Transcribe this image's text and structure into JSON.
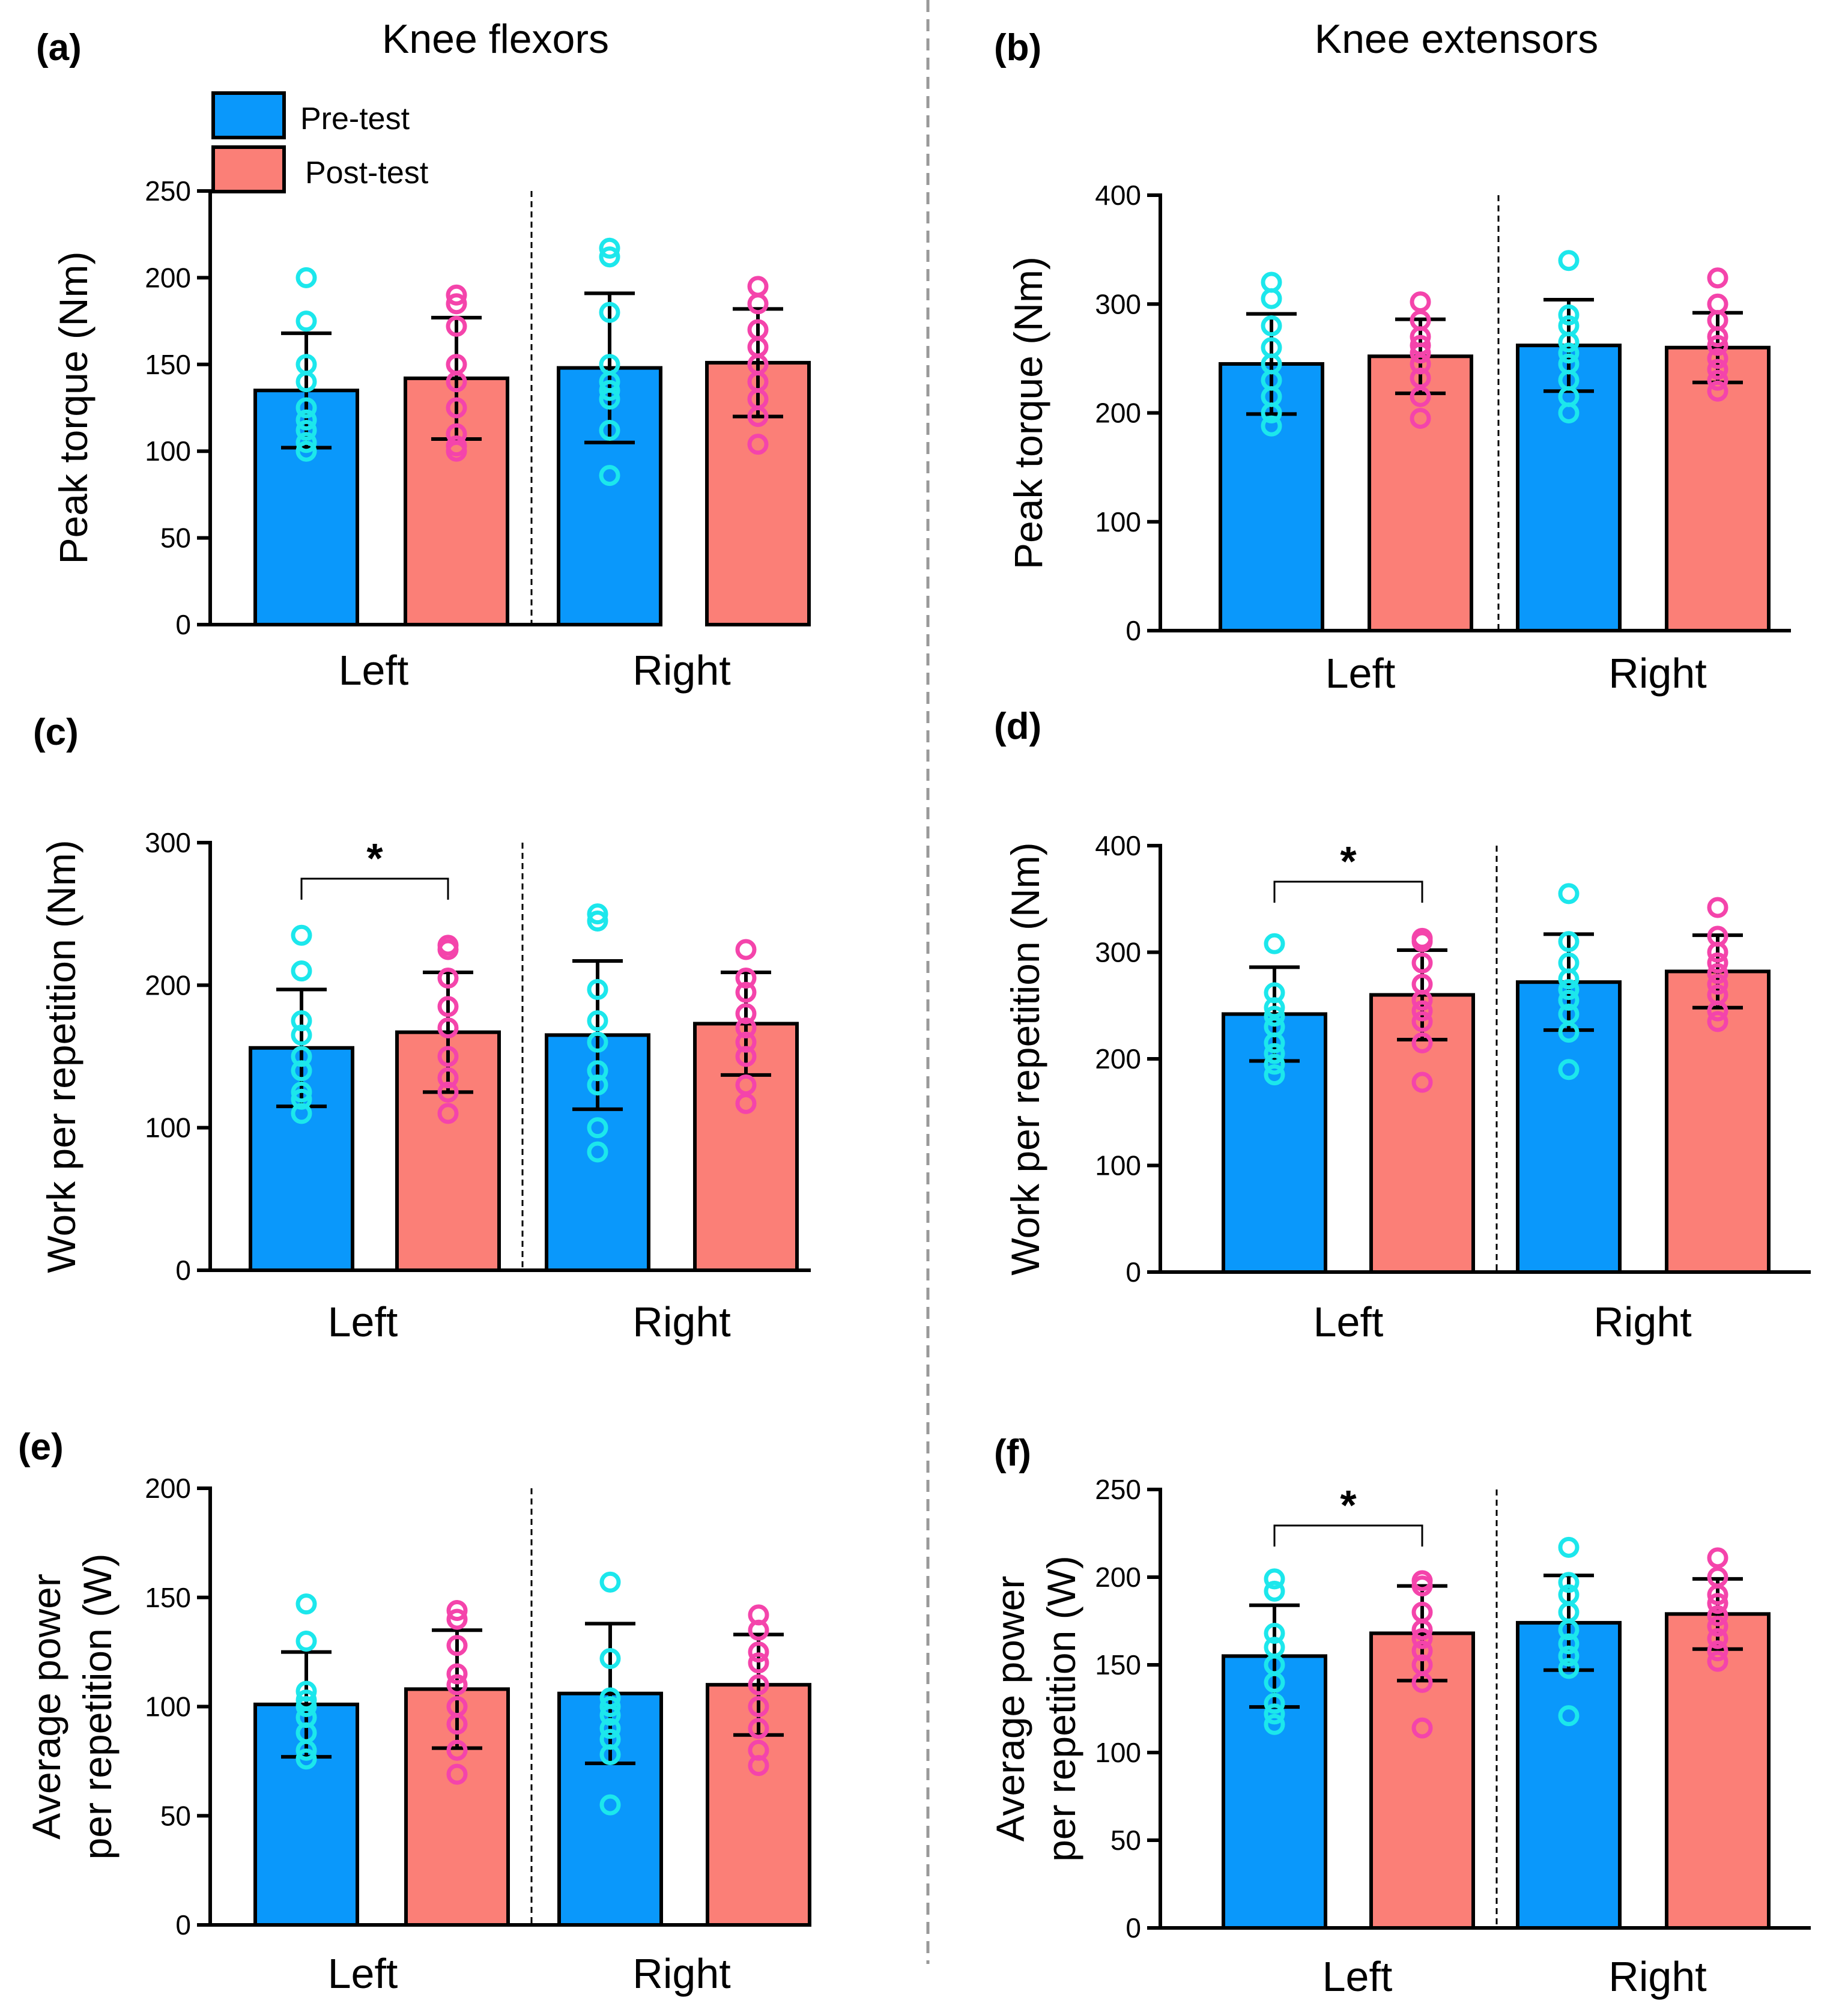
{
  "legend": {
    "pre": "Pre-test",
    "post": "Post-test",
    "pre_color": "#0a98fb",
    "post_color": "#fb7f77",
    "pre_point_color": "#1ce7ec",
    "post_point_color": "#f444ab"
  },
  "column_titles": {
    "left": "Knee flexors",
    "right": "Knee extensors"
  },
  "chart_data": [
    {
      "id": "a",
      "panel_label": "(a)",
      "type": "bar",
      "title": "Knee flexors",
      "ylabel_lines": [
        "Peak torque (Nm)"
      ],
      "ylim": [
        0,
        250
      ],
      "yticks": [
        0,
        50,
        100,
        150,
        200,
        250
      ],
      "categories": [
        "Left",
        "Right"
      ],
      "series": [
        {
          "name": "Pre-test",
          "values": [
            135,
            148
          ],
          "sd": [
            33,
            43
          ],
          "points": [
            [
              200,
              175,
              150,
              140,
              125,
              118,
              112,
              105,
              100
            ],
            [
              217,
              212,
              180,
              150,
              140,
              135,
              130,
              112,
              86
            ]
          ]
        },
        {
          "name": "Post-test",
          "values": [
            142,
            151
          ],
          "sd": [
            35,
            31
          ],
          "points": [
            [
              190,
              185,
              172,
              150,
              140,
              125,
              110,
              103,
              100
            ],
            [
              195,
              185,
              170,
              160,
              150,
              140,
              130,
              120,
              104
            ]
          ]
        }
      ],
      "significance": null
    },
    {
      "id": "b",
      "panel_label": "(b)",
      "type": "bar",
      "title": "Knee extensors",
      "ylabel_lines": [
        "Peak torque (Nm)"
      ],
      "ylim": [
        0,
        400
      ],
      "yticks": [
        0,
        100,
        200,
        300,
        400
      ],
      "categories": [
        "Left",
        "Right"
      ],
      "series": [
        {
          "name": "Pre-test",
          "values": [
            245,
            262
          ],
          "sd": [
            46,
            42
          ],
          "points": [
            [
              320,
              305,
              280,
              260,
              245,
              230,
              215,
              200,
              188
            ],
            [
              340,
              290,
              280,
              265,
              255,
              245,
              230,
              215,
              200
            ]
          ]
        },
        {
          "name": "Post-test",
          "values": [
            252,
            260
          ],
          "sd": [
            34,
            32
          ],
          "points": [
            [
              302,
              285,
              270,
              262,
              255,
              245,
              232,
              215,
              195
            ],
            [
              324,
              300,
              285,
              270,
              262,
              250,
              240,
              230,
              220
            ]
          ]
        }
      ],
      "significance": null
    },
    {
      "id": "c",
      "panel_label": "(c)",
      "type": "bar",
      "title": "",
      "ylabel_lines": [
        "Work per repetition (Nm)"
      ],
      "ylim": [
        0,
        300
      ],
      "yticks": [
        0,
        100,
        200,
        300
      ],
      "categories": [
        "Left",
        "Right"
      ],
      "series": [
        {
          "name": "Pre-test",
          "values": [
            156,
            165
          ],
          "sd": [
            41,
            52
          ],
          "points": [
            [
              235,
              210,
              175,
              165,
              150,
              140,
              125,
              120,
              110
            ],
            [
              250,
              245,
              197,
              175,
              160,
              140,
              130,
              100,
              83
            ]
          ]
        },
        {
          "name": "Post-test",
          "values": [
            167,
            173
          ],
          "sd": [
            42,
            36
          ],
          "points": [
            [
              228,
              225,
              205,
              185,
              170,
              150,
              135,
              125,
              110
            ],
            [
              225,
              205,
              195,
              180,
              170,
              160,
              150,
              130,
              117
            ]
          ]
        }
      ],
      "significance": {
        "label": "*",
        "category": "Left"
      }
    },
    {
      "id": "d",
      "panel_label": "(d)",
      "type": "bar",
      "title": "",
      "ylabel_lines": [
        "Work per repetition (Nm)"
      ],
      "ylim": [
        0,
        400
      ],
      "yticks": [
        0,
        100,
        200,
        300,
        400
      ],
      "categories": [
        "Left",
        "Right"
      ],
      "series": [
        {
          "name": "Pre-test",
          "values": [
            242,
            272
          ],
          "sd": [
            44,
            45
          ],
          "points": [
            [
              308,
              262,
              248,
              240,
              230,
              215,
              205,
              195,
              185
            ],
            [
              355,
              310,
              290,
              275,
              265,
              255,
              242,
              225,
              190
            ]
          ]
        },
        {
          "name": "Post-test",
          "values": [
            260,
            282
          ],
          "sd": [
            42,
            34
          ],
          "points": [
            [
              313,
              310,
              290,
              270,
              255,
              245,
              235,
              215,
              178
            ],
            [
              342,
              315,
              300,
              290,
              280,
              270,
              260,
              245,
              235
            ]
          ]
        }
      ],
      "significance": {
        "label": "*",
        "category": "Left"
      }
    },
    {
      "id": "e",
      "panel_label": "(e)",
      "type": "bar",
      "title": "",
      "ylabel_lines": [
        "Average power",
        "per repetition (W)"
      ],
      "ylim": [
        0,
        200
      ],
      "yticks": [
        0,
        50,
        100,
        150,
        200
      ],
      "categories": [
        "Left",
        "Right"
      ],
      "series": [
        {
          "name": "Pre-test",
          "values": [
            101,
            106
          ],
          "sd": [
            24,
            32
          ],
          "points": [
            [
              147,
              130,
              107,
              103,
              100,
              95,
              88,
              80,
              76
            ],
            [
              157,
              122,
              104,
              100,
              96,
              90,
              85,
              78,
              55
            ]
          ]
        },
        {
          "name": "Post-test",
          "values": [
            108,
            110
          ],
          "sd": [
            27,
            23
          ],
          "points": [
            [
              144,
              140,
              128,
              115,
              110,
              100,
              92,
              80,
              69
            ],
            [
              142,
              135,
              125,
              120,
              110,
              100,
              90,
              80,
              73
            ]
          ]
        }
      ],
      "significance": null
    },
    {
      "id": "f",
      "panel_label": "(f)",
      "type": "bar",
      "title": "",
      "ylabel_lines": [
        "Average power",
        "per repetition (W)"
      ],
      "ylim": [
        0,
        250
      ],
      "yticks": [
        0,
        50,
        100,
        150,
        200,
        250
      ],
      "categories": [
        "Left",
        "Right"
      ],
      "series": [
        {
          "name": "Pre-test",
          "values": [
            155,
            174
          ],
          "sd": [
            29,
            27
          ],
          "points": [
            [
              199,
              192,
              168,
              160,
              150,
              140,
              128,
              122,
              116
            ],
            [
              217,
              197,
              190,
              180,
              170,
              162,
              155,
              148,
              121
            ]
          ]
        },
        {
          "name": "Post-test",
          "values": [
            168,
            179
          ],
          "sd": [
            27,
            20
          ],
          "points": [
            [
              198,
              195,
              180,
              170,
              165,
              158,
              150,
              140,
              114
            ],
            [
              211,
              200,
              190,
              185,
              178,
              172,
              165,
              158,
              152
            ]
          ]
        }
      ],
      "significance": {
        "label": "*",
        "category": "Left"
      }
    }
  ]
}
